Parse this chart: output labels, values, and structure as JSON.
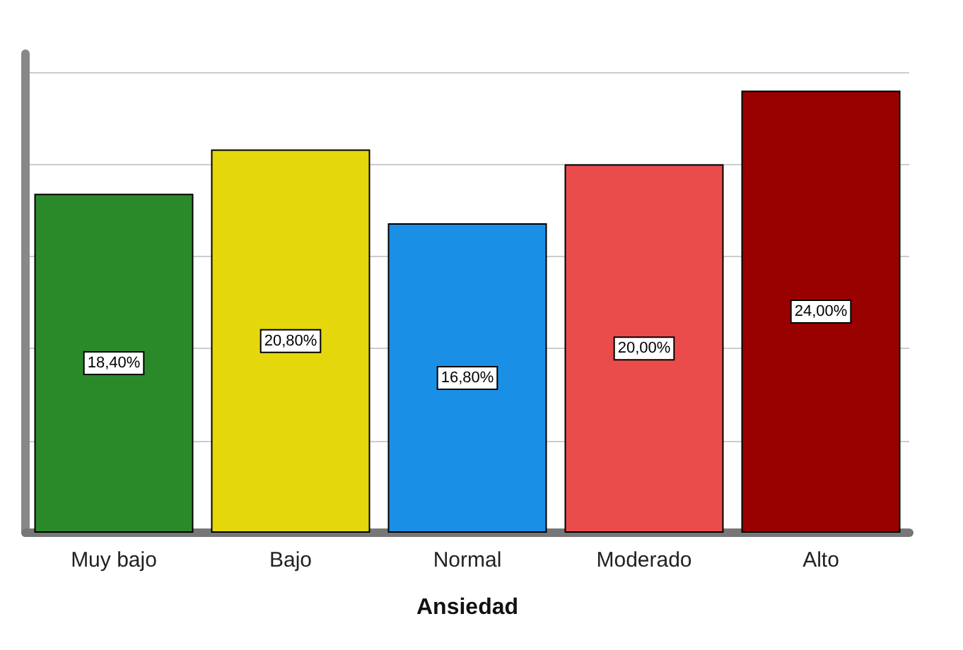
{
  "chart_data": {
    "type": "bar",
    "xlabel": "Ansiedad",
    "categories": [
      "Muy bajo",
      "Bajo",
      "Normal",
      "Moderado",
      "Alto"
    ],
    "values": [
      18.4,
      20.8,
      16.8,
      20.0,
      24.0
    ],
    "value_labels": [
      "18,40%",
      "20,80%",
      "16,80%",
      "20,00%",
      "24,00%"
    ],
    "colors": [
      "#2a8a2a",
      "#e4d80c",
      "#1a8fe6",
      "#ea4c4c",
      "#990000"
    ],
    "ylim": [
      0,
      26
    ],
    "yticks": [
      0,
      5,
      10,
      15,
      20,
      25
    ],
    "grid": "y",
    "tick_labels": "x"
  }
}
